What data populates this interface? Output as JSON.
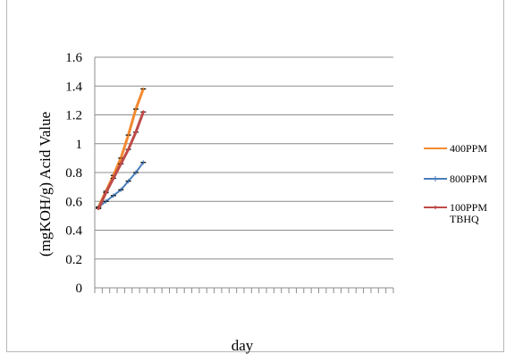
{
  "chart_data": {
    "type": "line",
    "xlabel": "day",
    "ylabel": "(mgKOH/g) Acid Value",
    "ylim": [
      0,
      1.6
    ],
    "yticks": [
      "0",
      "0.2",
      "0.4",
      "0.6",
      "0.8",
      "1",
      "1.2",
      "1.4",
      "1.6"
    ],
    "ytick_values": [
      0,
      0.2,
      0.4,
      0.6,
      0.8,
      1.0,
      1.2,
      1.4,
      1.6
    ],
    "x_category_count": 40,
    "grid": true,
    "legend_position": "right",
    "series": [
      {
        "name": "400PPM",
        "color": "#f28a30",
        "marker": "none",
        "x": [
          1,
          2,
          3,
          4,
          5,
          6,
          7
        ],
        "values": [
          0.56,
          0.67,
          0.78,
          0.9,
          1.06,
          1.24,
          1.38
        ]
      },
      {
        "name": "800PPM",
        "color": "#4a7ebb",
        "marker": "plus",
        "x": [
          1,
          2,
          3,
          4,
          5,
          6,
          7
        ],
        "values": [
          0.56,
          0.6,
          0.64,
          0.68,
          0.74,
          0.8,
          0.87
        ]
      },
      {
        "name": "100PPM TBHQ",
        "name_lines": [
          "100PPM",
          "TBHQ"
        ],
        "color": "#be4b48",
        "marker": "diamond",
        "x": [
          1,
          2,
          3,
          4,
          5,
          6,
          7
        ],
        "values": [
          0.55,
          0.66,
          0.76,
          0.86,
          0.96,
          1.08,
          1.22
        ]
      }
    ]
  }
}
